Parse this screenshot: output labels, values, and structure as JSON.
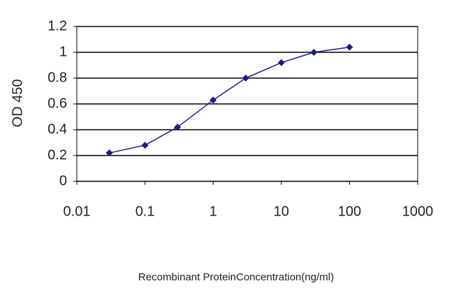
{
  "chart_data": {
    "type": "line",
    "x_label": "Recombinant ProteinConcentration(ng/ml)",
    "y_label": "OD 450",
    "x": [
      0.03,
      0.1,
      0.3,
      1,
      3,
      10,
      30,
      100
    ],
    "series": [
      {
        "color": "#1a1a8c",
        "values": [
          0.22,
          0.28,
          0.42,
          0.63,
          0.8,
          0.92,
          1.0,
          1.04
        ]
      }
    ],
    "xlim": [
      0.01,
      1000
    ],
    "xticks": [
      0.01,
      0.1,
      1,
      10,
      100,
      1000
    ],
    "xlog": true,
    "ylim": [
      0,
      1.2
    ],
    "yticks": [
      0,
      0.2,
      0.4,
      0.6,
      0.8,
      1,
      1.2
    ],
    "grid": true
  }
}
